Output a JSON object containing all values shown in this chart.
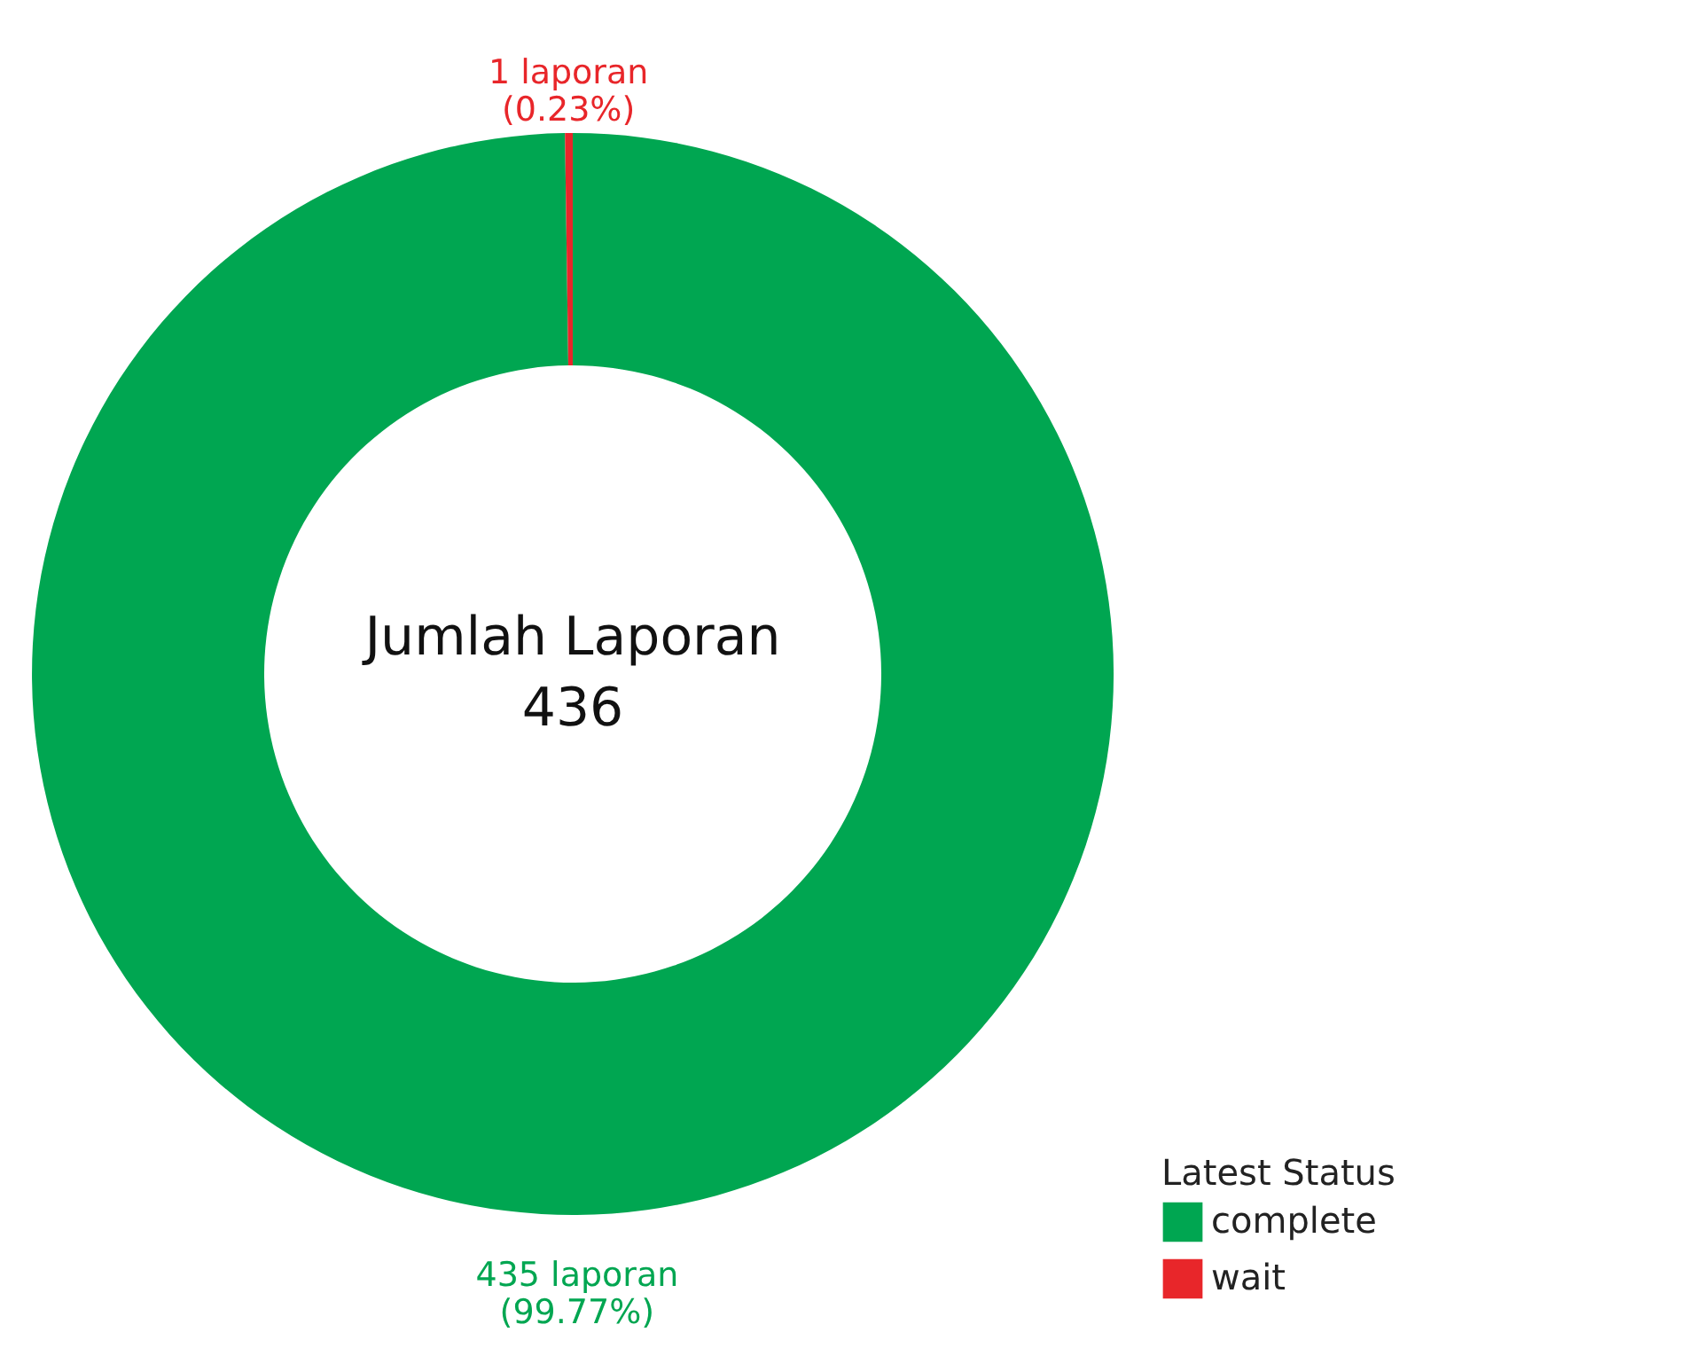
{
  "chart_data": {
    "type": "donut",
    "categories": [
      "complete",
      "wait"
    ],
    "values": [
      435,
      1
    ],
    "colors": [
      "#00a651",
      "#e8262a"
    ],
    "value_labels": [
      "435 laporan\n(99.77%)",
      "1 laporan\n(0.23%)"
    ],
    "annotations": [
      "Jumlah Laporan",
      "436"
    ],
    "legend_title": "Latest Status",
    "legend": "bottom right"
  }
}
